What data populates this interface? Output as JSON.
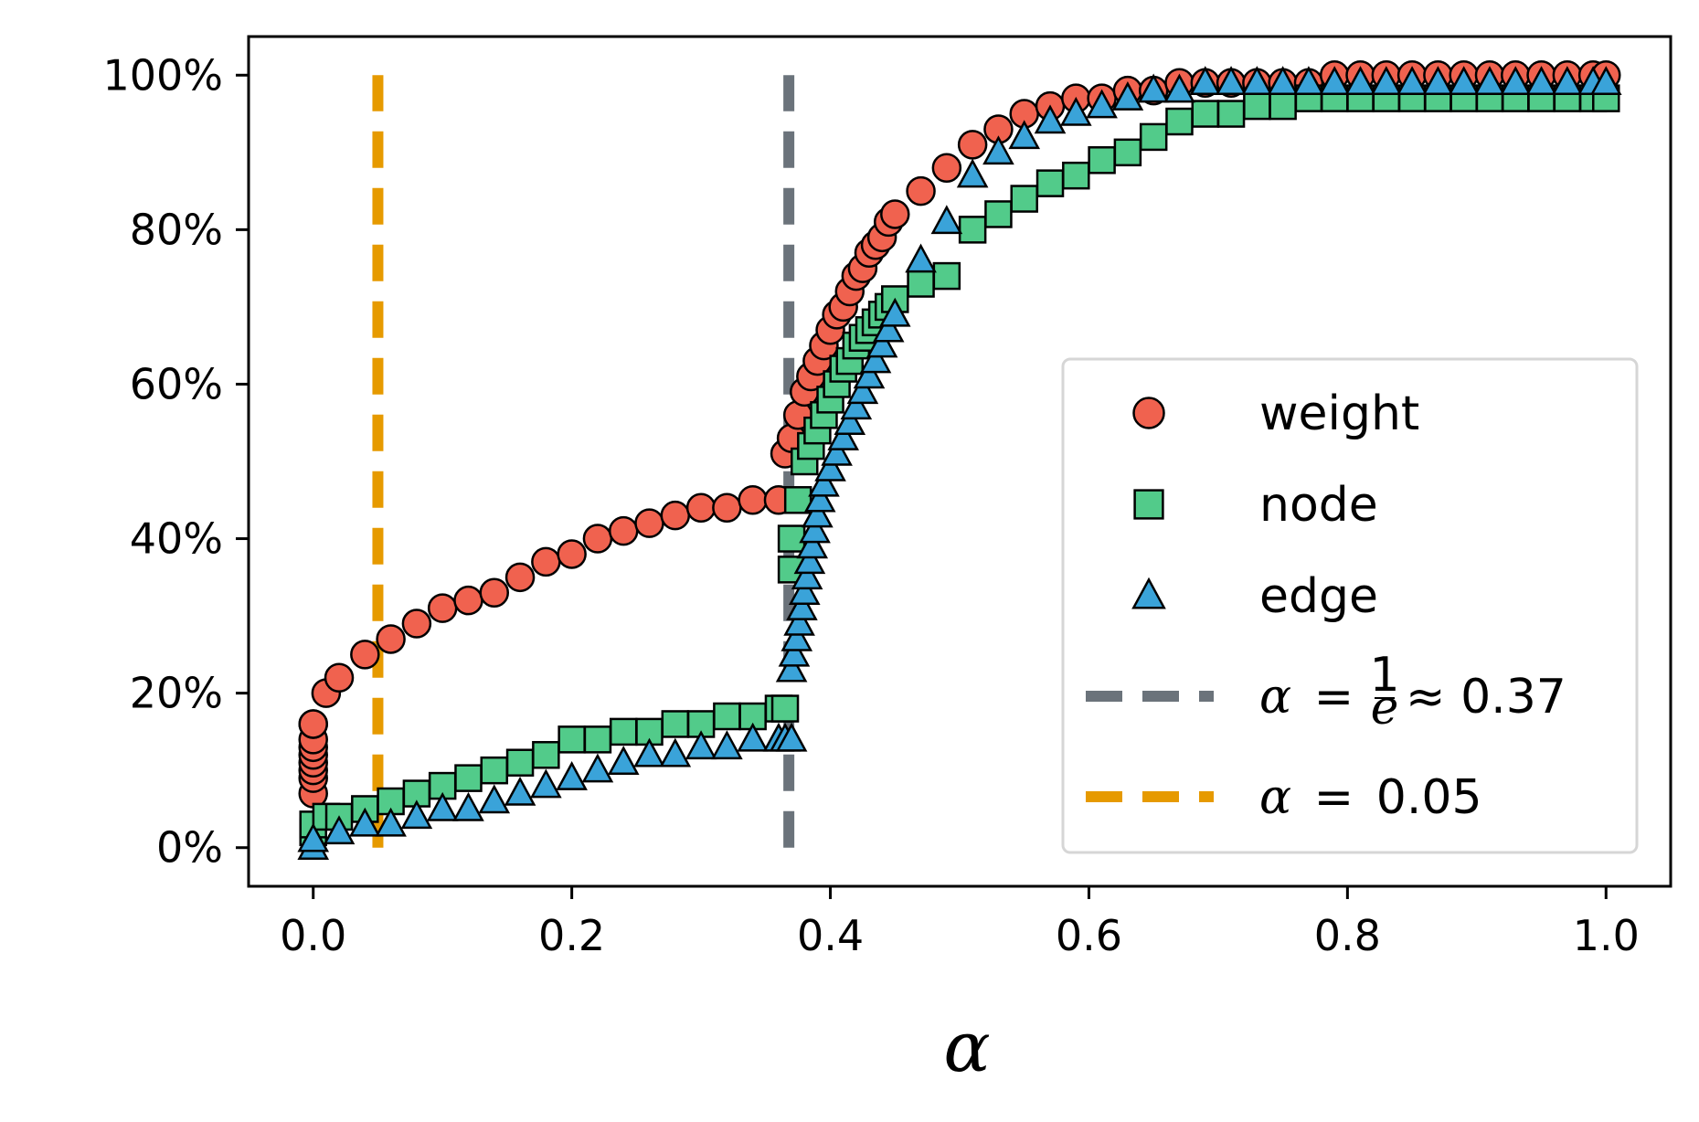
{
  "chart_data": {
    "type": "scatter",
    "xlabel": "α",
    "ylabel": "",
    "title": "",
    "xlim": [
      -0.05,
      1.05
    ],
    "ylim": [
      -0.05,
      1.05
    ],
    "x_ticks": [
      0.0,
      0.2,
      0.4,
      0.6,
      0.8,
      1.0
    ],
    "x_tick_labels": [
      "0.0",
      "0.2",
      "0.4",
      "0.6",
      "0.8",
      "1.0"
    ],
    "y_ticks": [
      0,
      0.2,
      0.4,
      0.6,
      0.8,
      1.0
    ],
    "y_tick_labels": [
      "0%",
      "20%",
      "40%",
      "60%",
      "80%",
      "100%"
    ],
    "grid": false,
    "legend_position": "lower-right",
    "series": [
      {
        "name": "weight",
        "marker": "circle",
        "color": "#f0624f",
        "x": [
          0.0,
          0.0,
          0.0,
          0.0,
          0.0,
          0.0,
          0.0,
          0.0,
          0.0,
          0.01,
          0.02,
          0.04,
          0.06,
          0.08,
          0.1,
          0.12,
          0.14,
          0.16,
          0.18,
          0.2,
          0.22,
          0.24,
          0.26,
          0.28,
          0.3,
          0.32,
          0.34,
          0.36,
          0.365,
          0.37,
          0.375,
          0.38,
          0.385,
          0.39,
          0.395,
          0.4,
          0.405,
          0.41,
          0.415,
          0.42,
          0.425,
          0.43,
          0.435,
          0.44,
          0.445,
          0.45,
          0.47,
          0.49,
          0.51,
          0.53,
          0.55,
          0.57,
          0.59,
          0.61,
          0.63,
          0.65,
          0.67,
          0.69,
          0.71,
          0.73,
          0.75,
          0.77,
          0.79,
          0.81,
          0.83,
          0.85,
          0.87,
          0.89,
          0.91,
          0.93,
          0.95,
          0.97,
          0.99,
          1.0
        ],
        "y": [
          0.07,
          0.09,
          0.1,
          0.11,
          0.12,
          0.13,
          0.14,
          0.16,
          0.16,
          0.2,
          0.22,
          0.25,
          0.27,
          0.29,
          0.31,
          0.32,
          0.33,
          0.35,
          0.37,
          0.38,
          0.4,
          0.41,
          0.42,
          0.43,
          0.44,
          0.44,
          0.45,
          0.45,
          0.51,
          0.53,
          0.56,
          0.59,
          0.61,
          0.63,
          0.65,
          0.67,
          0.69,
          0.7,
          0.72,
          0.74,
          0.75,
          0.77,
          0.78,
          0.79,
          0.81,
          0.82,
          0.85,
          0.88,
          0.91,
          0.93,
          0.95,
          0.96,
          0.97,
          0.97,
          0.98,
          0.98,
          0.99,
          0.99,
          0.99,
          0.99,
          0.99,
          0.99,
          1.0,
          1.0,
          1.0,
          1.0,
          1.0,
          1.0,
          1.0,
          1.0,
          1.0,
          1.0,
          1.0,
          1.0
        ]
      },
      {
        "name": "node",
        "marker": "square",
        "color": "#52cb8a",
        "x": [
          0.0,
          0.0,
          0.01,
          0.02,
          0.04,
          0.06,
          0.08,
          0.1,
          0.12,
          0.14,
          0.16,
          0.18,
          0.2,
          0.22,
          0.24,
          0.26,
          0.28,
          0.3,
          0.32,
          0.34,
          0.36,
          0.365,
          0.37,
          0.37,
          0.375,
          0.38,
          0.385,
          0.39,
          0.395,
          0.4,
          0.405,
          0.41,
          0.415,
          0.42,
          0.425,
          0.43,
          0.435,
          0.44,
          0.445,
          0.45,
          0.47,
          0.49,
          0.51,
          0.53,
          0.55,
          0.57,
          0.59,
          0.61,
          0.63,
          0.65,
          0.67,
          0.69,
          0.71,
          0.73,
          0.75,
          0.77,
          0.79,
          0.81,
          0.83,
          0.85,
          0.87,
          0.89,
          0.91,
          0.93,
          0.95,
          0.97,
          0.99,
          1.0
        ],
        "y": [
          0.02,
          0.03,
          0.04,
          0.04,
          0.05,
          0.06,
          0.07,
          0.08,
          0.09,
          0.1,
          0.11,
          0.12,
          0.14,
          0.14,
          0.15,
          0.15,
          0.16,
          0.16,
          0.17,
          0.17,
          0.18,
          0.18,
          0.36,
          0.4,
          0.45,
          0.5,
          0.52,
          0.54,
          0.56,
          0.58,
          0.6,
          0.62,
          0.63,
          0.65,
          0.66,
          0.67,
          0.68,
          0.69,
          0.7,
          0.71,
          0.73,
          0.74,
          0.8,
          0.82,
          0.84,
          0.86,
          0.87,
          0.89,
          0.9,
          0.92,
          0.94,
          0.95,
          0.95,
          0.96,
          0.96,
          0.97,
          0.97,
          0.97,
          0.97,
          0.97,
          0.97,
          0.97,
          0.97,
          0.97,
          0.97,
          0.97,
          0.97,
          0.97
        ]
      },
      {
        "name": "edge",
        "marker": "triangle",
        "color": "#3aa3d9",
        "x": [
          0.0,
          0.0,
          0.02,
          0.04,
          0.06,
          0.08,
          0.1,
          0.12,
          0.14,
          0.16,
          0.18,
          0.2,
          0.22,
          0.24,
          0.26,
          0.28,
          0.3,
          0.32,
          0.34,
          0.36,
          0.365,
          0.37,
          0.37,
          0.372,
          0.374,
          0.376,
          0.378,
          0.38,
          0.382,
          0.384,
          0.386,
          0.388,
          0.39,
          0.392,
          0.395,
          0.4,
          0.405,
          0.41,
          0.415,
          0.42,
          0.425,
          0.43,
          0.435,
          0.44,
          0.445,
          0.45,
          0.47,
          0.49,
          0.51,
          0.53,
          0.55,
          0.57,
          0.59,
          0.61,
          0.63,
          0.65,
          0.67,
          0.69,
          0.71,
          0.73,
          0.75,
          0.77,
          0.79,
          0.81,
          0.83,
          0.85,
          0.87,
          0.89,
          0.91,
          0.93,
          0.95,
          0.97,
          0.99,
          1.0
        ],
        "y": [
          0.0,
          0.01,
          0.02,
          0.03,
          0.03,
          0.04,
          0.05,
          0.05,
          0.06,
          0.07,
          0.08,
          0.09,
          0.1,
          0.11,
          0.12,
          0.12,
          0.13,
          0.13,
          0.14,
          0.14,
          0.14,
          0.14,
          0.23,
          0.25,
          0.27,
          0.29,
          0.31,
          0.33,
          0.35,
          0.37,
          0.39,
          0.41,
          0.43,
          0.45,
          0.47,
          0.49,
          0.51,
          0.53,
          0.55,
          0.57,
          0.59,
          0.61,
          0.63,
          0.65,
          0.67,
          0.69,
          0.76,
          0.81,
          0.87,
          0.9,
          0.92,
          0.94,
          0.95,
          0.96,
          0.97,
          0.98,
          0.98,
          0.99,
          0.99,
          0.99,
          0.99,
          0.99,
          0.99,
          0.99,
          0.99,
          0.99,
          0.99,
          0.99,
          0.99,
          0.99,
          0.99,
          0.99,
          0.99,
          0.99
        ]
      }
    ],
    "reference_lines": [
      {
        "orientation": "vertical",
        "x": 0.3679,
        "y_range": [
          0,
          1.0
        ],
        "style": "dashed",
        "color": "#6b737b",
        "label_prefix": "α",
        "label_suffix": "≈ 0.37"
      },
      {
        "orientation": "vertical",
        "x": 0.05,
        "y_range": [
          0,
          1.0
        ],
        "style": "dashed",
        "color": "#e69a00",
        "label_prefix": "α",
        "label_value": "0.05"
      }
    ],
    "legend": {
      "weight_label": "weight",
      "node_label": "node",
      "edge_label": "edge",
      "ref1_alpha": "α",
      "ref1_eq": "=",
      "ref1_num": "1",
      "ref1_den": "e",
      "ref1_approx": "≈ 0.37",
      "ref2_alpha": "α",
      "ref2_eq": "=",
      "ref2_value": "0.05"
    }
  }
}
